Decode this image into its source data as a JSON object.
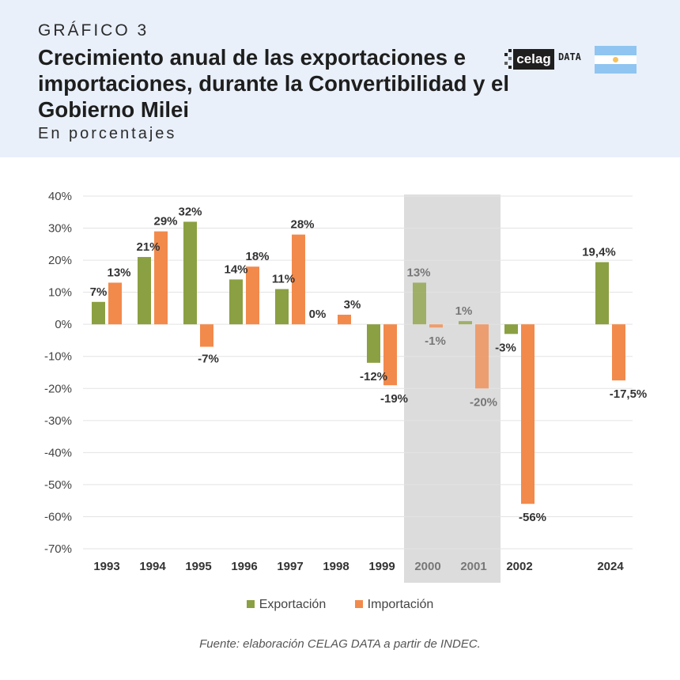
{
  "header": {
    "kicker": "GRÁFICO 3",
    "title": "Crecimiento anual de las exportaciones e importaciones, durante la Convertibilidad y el Gobierno Milei",
    "subtitle": "En porcentajes",
    "logo_word": "celag",
    "logo_suffix": "DATA"
  },
  "colors": {
    "header_bg": "#e9f0fa",
    "export": "#8ba042",
    "import": "#f28a4c",
    "highlight_band": "#dcdcdc"
  },
  "chart_data": {
    "type": "bar",
    "categories": [
      "1993",
      "1994",
      "1995",
      "1996",
      "1997",
      "1998",
      "1999",
      "2000",
      "2001",
      "2002",
      "2024"
    ],
    "series": [
      {
        "name": "Exportación",
        "values": [
          7,
          21,
          32,
          14,
          11,
          0,
          -12,
          13,
          1,
          -3,
          19.4
        ],
        "labels": [
          "7%",
          "21%",
          "32%",
          "14%",
          "11%",
          "0%",
          "-12%",
          "13%",
          "1%",
          "-3%",
          "19,4%"
        ]
      },
      {
        "name": "Importación",
        "values": [
          13,
          29,
          -7,
          18,
          28,
          3,
          -19,
          -1,
          -20,
          -56,
          -17.5
        ],
        "labels": [
          "13%",
          "29%",
          "-7%",
          "18%",
          "28%",
          "3%",
          "-19%",
          "-1%",
          "-20%",
          "-56%",
          "-17,5%"
        ]
      }
    ],
    "ylim": [
      -70,
      40
    ],
    "yticks": [
      40,
      30,
      20,
      10,
      0,
      -10,
      -20,
      -30,
      -40,
      -50,
      -60,
      -70
    ],
    "ytick_labels": [
      "40%",
      "30%",
      "20%",
      "10%",
      "0%",
      "-10%",
      "-20%",
      "-30%",
      "-40%",
      "-50%",
      "-60%",
      "-70%"
    ],
    "highlight": [
      "2000",
      "2001"
    ],
    "grid": true,
    "legend": "bottom-center"
  },
  "legend": {
    "items": [
      {
        "label": "Exportación"
      },
      {
        "label": "Importación"
      }
    ]
  },
  "source": "Fuente: elaboración CELAG DATA a partir de INDEC."
}
